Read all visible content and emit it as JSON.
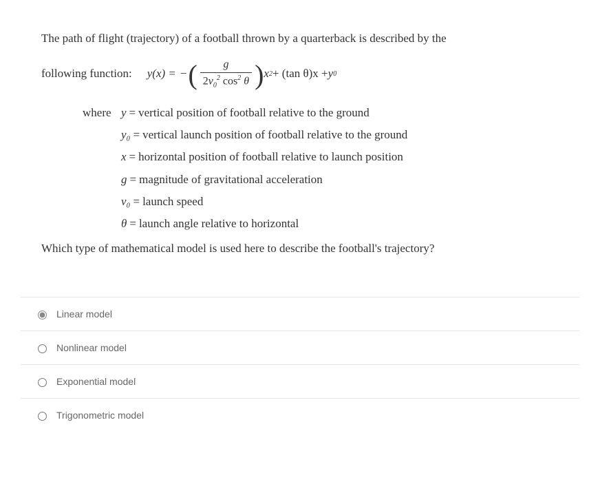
{
  "question": {
    "intro_prefix": "The path of flight (trajectory) of a football thrown by a quarterback is described by the",
    "following_label": "following function:",
    "equation": {
      "lhs": "y(x) =",
      "minus": "−",
      "frac_num": "g",
      "frac_den_prefix": "2",
      "frac_den_v": "v",
      "frac_den_v_sub": "0",
      "frac_den_v_sup": "2",
      "frac_den_cos": " cos",
      "frac_den_cos_sup": "2",
      "frac_den_theta": " θ",
      "after_paren_x": "x",
      "after_paren_x_sup": "2",
      "plus_tan": " + (tan θ)x + ",
      "y0_y": "y",
      "y0_sub": "0"
    },
    "where_label": "where",
    "defs": [
      {
        "var": "y",
        "text": "vertical position of football relative to the ground"
      },
      {
        "var": "y₀",
        "text": "vertical launch position of football relative to the ground"
      },
      {
        "var": "x",
        "text": "horizontal position of football relative to launch position"
      },
      {
        "var": "g",
        "text": "magnitude of gravitational acceleration"
      },
      {
        "var": "v₀",
        "text": "launch speed"
      },
      {
        "var": "θ",
        "text": "launch angle relative to horizontal"
      }
    ],
    "closing": "Which type of mathematical model is used here to describe the football's trajectory?"
  },
  "options": [
    {
      "label": "Linear model",
      "selected": true
    },
    {
      "label": "Nonlinear model",
      "selected": false
    },
    {
      "label": "Exponential model",
      "selected": false
    },
    {
      "label": "Trigonometric model",
      "selected": false
    }
  ],
  "colors": {
    "text": "#333333",
    "option_text": "#666666",
    "divider": "#e5e5e5",
    "background": "#ffffff"
  }
}
